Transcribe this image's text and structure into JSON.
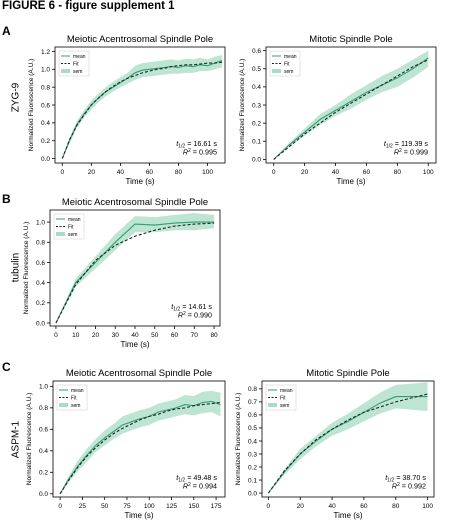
{
  "figure_title": "FIGURE 6 - figure supplement 1",
  "panels": [
    {
      "letter": "A",
      "row_label": "ZYG-9"
    },
    {
      "letter": "B",
      "row_label": "tubulin"
    },
    {
      "letter": "C",
      "row_label": "ASPM-1"
    }
  ],
  "colors": {
    "mean": "#2e9e6f",
    "fit": "#222222",
    "sem": "#a8dcc6",
    "axis": "#000000"
  },
  "legend_labels": {
    "mean": "mean",
    "fit": "Fit",
    "sem": "sem"
  },
  "chart_data": [
    {
      "type": "line",
      "panel": "A",
      "title": "Meiotic Acentrosomal Spindle Pole",
      "xlabel": "Time (s)",
      "ylabel": "Normalized Fluorescence (A.U.)",
      "xlim": [
        -5,
        112
      ],
      "ylim": [
        -0.05,
        1.25
      ],
      "xticks": [
        0,
        20,
        40,
        60,
        80,
        100
      ],
      "yticks": [
        0.0,
        0.2,
        0.4,
        0.6,
        0.8,
        1.0,
        1.2
      ],
      "ytick_labels": [
        "0.0",
        "0.2",
        "0.4",
        "0.6",
        "0.8",
        "1.0",
        "1.2"
      ],
      "annotation": {
        "t_half": "16.61 s",
        "r2": "0.995"
      },
      "series": [
        {
          "name": "mean",
          "x": [
            0,
            5,
            10,
            15,
            20,
            25,
            30,
            35,
            40,
            45,
            50,
            55,
            60,
            65,
            70,
            75,
            80,
            85,
            90,
            95,
            100,
            105,
            110
          ],
          "y": [
            0,
            0.2,
            0.38,
            0.5,
            0.6,
            0.68,
            0.75,
            0.8,
            0.85,
            0.9,
            0.96,
            0.99,
            1.0,
            1.01,
            1.02,
            1.03,
            1.02,
            1.04,
            1.03,
            1.05,
            1.04,
            1.07,
            1.1
          ]
        },
        {
          "name": "sem_low",
          "x": [
            0,
            5,
            10,
            15,
            20,
            25,
            30,
            35,
            40,
            45,
            50,
            55,
            60,
            65,
            70,
            75,
            80,
            85,
            90,
            95,
            100,
            105,
            110
          ],
          "y": [
            0,
            0.17,
            0.34,
            0.46,
            0.55,
            0.63,
            0.7,
            0.75,
            0.8,
            0.84,
            0.88,
            0.91,
            0.92,
            0.93,
            0.94,
            0.95,
            0.95,
            0.96,
            0.96,
            0.98,
            0.98,
            1.0,
            1.02
          ]
        },
        {
          "name": "sem_high",
          "x": [
            0,
            5,
            10,
            15,
            20,
            25,
            30,
            35,
            40,
            45,
            50,
            55,
            60,
            65,
            70,
            75,
            80,
            85,
            90,
            95,
            100,
            105,
            110
          ],
          "y": [
            0,
            0.23,
            0.42,
            0.54,
            0.65,
            0.73,
            0.8,
            0.86,
            0.91,
            0.96,
            1.04,
            1.07,
            1.08,
            1.09,
            1.1,
            1.11,
            1.1,
            1.12,
            1.11,
            1.13,
            1.11,
            1.14,
            1.16
          ]
        },
        {
          "name": "Fit",
          "x": [
            0,
            5,
            10,
            15,
            20,
            25,
            30,
            35,
            40,
            45,
            50,
            55,
            60,
            65,
            70,
            75,
            80,
            85,
            90,
            95,
            100,
            105,
            110
          ],
          "y": [
            0,
            0.21,
            0.37,
            0.49,
            0.6,
            0.68,
            0.75,
            0.81,
            0.86,
            0.9,
            0.93,
            0.96,
            0.98,
            1.0,
            1.01,
            1.03,
            1.04,
            1.05,
            1.05,
            1.06,
            1.07,
            1.07,
            1.08
          ]
        }
      ]
    },
    {
      "type": "line",
      "panel": "A",
      "title": "Mitotic Spindle Pole",
      "xlabel": "Time (s)",
      "ylabel": "Normalized Fluorescence (A.U.)",
      "xlim": [
        -5,
        105
      ],
      "ylim": [
        -0.02,
        0.62
      ],
      "xticks": [
        0,
        20,
        40,
        60,
        80,
        100
      ],
      "yticks": [
        0.0,
        0.1,
        0.2,
        0.3,
        0.4,
        0.5,
        0.6
      ],
      "ytick_labels": [
        "0.0",
        "0.1",
        "0.2",
        "0.3",
        "0.4",
        "0.5",
        "0.6"
      ],
      "annotation": {
        "t_half": "119.39 s",
        "r2": "0.999"
      },
      "series": [
        {
          "name": "mean",
          "x": [
            0,
            10,
            20,
            30,
            40,
            50,
            60,
            70,
            80,
            90,
            100
          ],
          "y": [
            0,
            0.08,
            0.15,
            0.22,
            0.27,
            0.32,
            0.37,
            0.41,
            0.45,
            0.5,
            0.56
          ]
        },
        {
          "name": "sem_low",
          "x": [
            0,
            10,
            20,
            30,
            40,
            50,
            60,
            70,
            80,
            90,
            100
          ],
          "y": [
            0,
            0.07,
            0.13,
            0.19,
            0.24,
            0.28,
            0.33,
            0.37,
            0.4,
            0.45,
            0.51
          ]
        },
        {
          "name": "sem_high",
          "x": [
            0,
            10,
            20,
            30,
            40,
            50,
            60,
            70,
            80,
            90,
            100
          ],
          "y": [
            0,
            0.09,
            0.17,
            0.25,
            0.3,
            0.36,
            0.41,
            0.46,
            0.5,
            0.55,
            0.6
          ]
        },
        {
          "name": "Fit",
          "x": [
            0,
            10,
            20,
            30,
            40,
            50,
            60,
            70,
            80,
            90,
            100
          ],
          "y": [
            0,
            0.07,
            0.14,
            0.2,
            0.26,
            0.31,
            0.36,
            0.41,
            0.46,
            0.51,
            0.55
          ]
        }
      ]
    },
    {
      "type": "line",
      "panel": "B",
      "title": "Meiotic Acentrosomal Spindle Pole",
      "xlabel": "Time (s)",
      "ylabel": "Normalized Fluorescence (A.U.)",
      "xlim": [
        -3,
        83
      ],
      "ylim": [
        -0.03,
        1.12
      ],
      "xticks": [
        0,
        10,
        20,
        30,
        40,
        50,
        60,
        70,
        80
      ],
      "yticks": [
        0.0,
        0.2,
        0.4,
        0.6,
        0.8,
        1.0
      ],
      "ytick_labels": [
        "0.0",
        "0.2",
        "0.4",
        "0.6",
        "0.8",
        "1.0"
      ],
      "annotation": {
        "t_half": "14.61 s",
        "r2": "0.990"
      },
      "series": [
        {
          "name": "mean",
          "x": [
            0,
            10,
            20,
            30,
            40,
            50,
            60,
            70,
            80
          ],
          "y": [
            0,
            0.4,
            0.6,
            0.8,
            0.98,
            0.97,
            0.99,
            1.0,
            1.0
          ]
        },
        {
          "name": "sem_low",
          "x": [
            0,
            10,
            20,
            30,
            40,
            50,
            60,
            70,
            80
          ],
          "y": [
            0,
            0.36,
            0.54,
            0.72,
            0.9,
            0.9,
            0.92,
            0.92,
            0.94
          ]
        },
        {
          "name": "sem_high",
          "x": [
            0,
            10,
            20,
            30,
            40,
            50,
            60,
            70,
            80
          ],
          "y": [
            0,
            0.44,
            0.66,
            0.88,
            1.06,
            1.05,
            1.07,
            1.09,
            1.07
          ]
        },
        {
          "name": "Fit",
          "x": [
            0,
            10,
            20,
            30,
            40,
            50,
            60,
            70,
            80
          ],
          "y": [
            0,
            0.38,
            0.62,
            0.77,
            0.86,
            0.92,
            0.96,
            0.98,
            0.99
          ]
        }
      ]
    },
    {
      "type": "line",
      "panel": "C",
      "title": "Meiotic Acentrosomal Spindle Pole",
      "xlabel": "Time (s)",
      "ylabel": "Normalized Fluorescence (A.U.)",
      "xlim": [
        -8,
        185
      ],
      "ylim": [
        -0.03,
        1.05
      ],
      "xticks": [
        0,
        25,
        50,
        75,
        100,
        125,
        150,
        175
      ],
      "yticks": [
        0.0,
        0.2,
        0.4,
        0.6,
        0.8,
        1.0
      ],
      "ytick_labels": [
        "0.0",
        "0.2",
        "0.4",
        "0.6",
        "0.8",
        "1.0"
      ],
      "annotation": {
        "t_half": "49.48 s",
        "r2": "0.994"
      },
      "series": [
        {
          "name": "mean",
          "x": [
            0,
            10,
            20,
            30,
            40,
            50,
            60,
            70,
            80,
            90,
            100,
            110,
            120,
            130,
            140,
            150,
            160,
            170,
            180
          ],
          "y": [
            0,
            0.14,
            0.26,
            0.36,
            0.45,
            0.52,
            0.58,
            0.64,
            0.67,
            0.7,
            0.72,
            0.76,
            0.78,
            0.8,
            0.83,
            0.82,
            0.85,
            0.86,
            0.83
          ]
        },
        {
          "name": "sem_low",
          "x": [
            0,
            10,
            20,
            30,
            40,
            50,
            60,
            70,
            80,
            90,
            100,
            110,
            120,
            130,
            140,
            150,
            160,
            170,
            180
          ],
          "y": [
            0,
            0.11,
            0.21,
            0.3,
            0.39,
            0.45,
            0.51,
            0.56,
            0.59,
            0.62,
            0.64,
            0.68,
            0.7,
            0.72,
            0.74,
            0.73,
            0.75,
            0.76,
            0.72
          ]
        },
        {
          "name": "sem_high",
          "x": [
            0,
            10,
            20,
            30,
            40,
            50,
            60,
            70,
            80,
            90,
            100,
            110,
            120,
            130,
            140,
            150,
            160,
            170,
            180
          ],
          "y": [
            0,
            0.17,
            0.31,
            0.42,
            0.51,
            0.59,
            0.65,
            0.72,
            0.75,
            0.78,
            0.8,
            0.84,
            0.86,
            0.88,
            0.92,
            0.91,
            0.95,
            0.96,
            0.94
          ]
        },
        {
          "name": "Fit",
          "x": [
            0,
            10,
            20,
            30,
            40,
            50,
            60,
            70,
            80,
            90,
            100,
            110,
            120,
            130,
            140,
            150,
            160,
            170,
            180
          ],
          "y": [
            0,
            0.13,
            0.25,
            0.35,
            0.43,
            0.5,
            0.56,
            0.61,
            0.65,
            0.69,
            0.72,
            0.74,
            0.77,
            0.79,
            0.8,
            0.82,
            0.83,
            0.84,
            0.85
          ]
        }
      ]
    },
    {
      "type": "line",
      "panel": "C",
      "title": "Mitotic Spindle Pole",
      "xlabel": "Time (s)",
      "ylabel": "Normalized Fluorescence (A.U.)",
      "xlim": [
        -4,
        104
      ],
      "ylim": [
        -0.03,
        0.86
      ],
      "xticks": [
        0,
        20,
        40,
        60,
        80,
        100
      ],
      "yticks": [
        0.0,
        0.1,
        0.2,
        0.3,
        0.4,
        0.5,
        0.6,
        0.7,
        0.8
      ],
      "ytick_labels": [
        "0.0",
        "0.1",
        "0.2",
        "0.3",
        "0.4",
        "0.5",
        "0.6",
        "0.7",
        "0.8"
      ],
      "annotation": {
        "t_half": "38.70 s",
        "r2": "0.992"
      },
      "series": [
        {
          "name": "mean",
          "x": [
            0,
            10,
            20,
            30,
            40,
            50,
            60,
            70,
            80,
            90,
            100
          ],
          "y": [
            0,
            0.16,
            0.3,
            0.4,
            0.49,
            0.55,
            0.62,
            0.69,
            0.74,
            0.74,
            0.74
          ]
        },
        {
          "name": "sem_low",
          "x": [
            0,
            10,
            20,
            30,
            40,
            50,
            60,
            70,
            80,
            90,
            100
          ],
          "y": [
            0,
            0.14,
            0.26,
            0.36,
            0.44,
            0.49,
            0.55,
            0.61,
            0.65,
            0.64,
            0.63
          ]
        },
        {
          "name": "sem_high",
          "x": [
            0,
            10,
            20,
            30,
            40,
            50,
            60,
            70,
            80,
            90,
            100
          ],
          "y": [
            0,
            0.18,
            0.34,
            0.44,
            0.54,
            0.61,
            0.69,
            0.77,
            0.83,
            0.84,
            0.85
          ]
        },
        {
          "name": "Fit",
          "x": [
            0,
            10,
            20,
            30,
            40,
            50,
            60,
            70,
            80,
            90,
            100
          ],
          "y": [
            0,
            0.17,
            0.3,
            0.41,
            0.49,
            0.56,
            0.62,
            0.66,
            0.7,
            0.73,
            0.76
          ]
        }
      ]
    }
  ]
}
